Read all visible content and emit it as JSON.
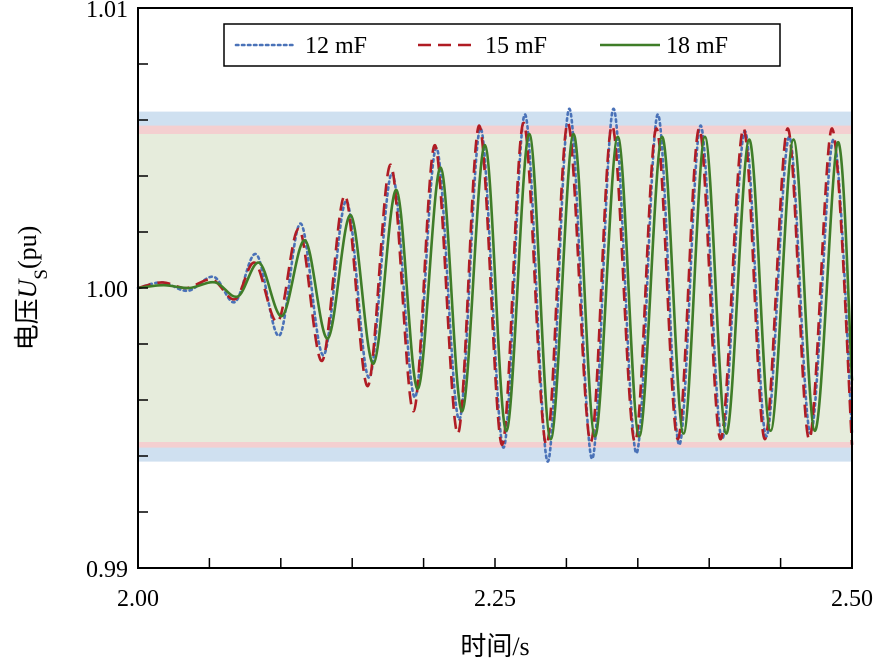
{
  "chart_data": {
    "type": "line",
    "xlabel": "时间/s",
    "ylabel": {
      "prefix": "电压",
      "symbol": "U",
      "subscript": "S",
      "suffix": "(pu)"
    },
    "xlim": [
      2.0,
      2.5
    ],
    "ylim": [
      0.99,
      1.01
    ],
    "x_ticks": [
      2.0,
      2.25,
      2.5
    ],
    "x_tick_labels": [
      "2.00",
      "2.25",
      "2.50"
    ],
    "x_minor_ticks": [
      2.05,
      2.1,
      2.15,
      2.2,
      2.3,
      2.35,
      2.4,
      2.45
    ],
    "y_ticks": [
      0.99,
      1.0,
      1.01
    ],
    "y_tick_labels": [
      "0.99",
      "1.00",
      "1.01"
    ],
    "y_minor_ticks": [
      0.992,
      0.994,
      0.996,
      0.998,
      1.002,
      1.004,
      1.006,
      1.008
    ],
    "grid": false,
    "legend_position": "top",
    "bands": [
      {
        "name": "12 mF",
        "range": [
          0.9938,
          1.0063
        ],
        "color": "#cfe0f0"
      },
      {
        "name": "15 mF",
        "range": [
          0.9943,
          1.0058
        ],
        "color": "#f4cfd0"
      },
      {
        "name": "18 mF",
        "range": [
          0.9945,
          1.0055
        ],
        "color": "#e6ecdc"
      }
    ],
    "series": [
      {
        "name": "12 mF",
        "color": "#4a72b8",
        "style": "dotted",
        "x": [
          2.0,
          2.017,
          2.035,
          2.053,
          2.068,
          2.083,
          2.099,
          2.114,
          2.13,
          2.146,
          2.162,
          2.178,
          2.194,
          2.209,
          2.225,
          2.24,
          2.256,
          2.271,
          2.287,
          2.302,
          2.318,
          2.333,
          2.349,
          2.364,
          2.379,
          2.394,
          2.409,
          2.425,
          2.44,
          2.456,
          2.471,
          2.487,
          2.5
        ],
        "y": [
          1.0,
          1.0002,
          0.9999,
          1.0004,
          0.9995,
          1.0012,
          0.9983,
          1.0023,
          0.9976,
          1.0031,
          0.9968,
          1.0041,
          0.9961,
          1.005,
          0.9953,
          1.0057,
          0.9943,
          1.0062,
          0.9938,
          1.0064,
          0.9939,
          1.0064,
          0.9941,
          1.0062,
          0.9944,
          1.0058,
          0.9946,
          1.0056,
          0.9947,
          1.0054,
          0.9948,
          1.0053,
          0.9948
        ]
      },
      {
        "name": "15 mF",
        "color": "#b01c24",
        "style": "dashed",
        "x": [
          2.0,
          2.017,
          2.034,
          2.052,
          2.068,
          2.082,
          2.098,
          2.113,
          2.129,
          2.145,
          2.161,
          2.177,
          2.193,
          2.208,
          2.224,
          2.239,
          2.255,
          2.27,
          2.286,
          2.301,
          2.317,
          2.332,
          2.348,
          2.363,
          2.378,
          2.393,
          2.408,
          2.424,
          2.439,
          2.455,
          2.47,
          2.486,
          2.5
        ],
        "y": [
          1.0,
          1.0002,
          1.0,
          1.0003,
          0.9996,
          1.0009,
          0.9988,
          1.0021,
          0.9974,
          1.0033,
          0.9965,
          1.0044,
          0.9956,
          1.0051,
          0.9948,
          1.0058,
          0.9944,
          1.0059,
          0.9944,
          1.0059,
          0.9945,
          1.0058,
          0.9945,
          1.0057,
          0.9946,
          1.0057,
          0.9946,
          1.0057,
          0.9946,
          1.0057,
          0.9946,
          1.0057,
          0.9944
        ]
      },
      {
        "name": "18 mF",
        "color": "#3f7d28",
        "style": "solid",
        "x": [
          2.0,
          2.018,
          2.036,
          2.054,
          2.07,
          2.085,
          2.101,
          2.117,
          2.133,
          2.149,
          2.165,
          2.181,
          2.196,
          2.212,
          2.227,
          2.243,
          2.258,
          2.274,
          2.289,
          2.305,
          2.32,
          2.336,
          2.351,
          2.367,
          2.382,
          2.397,
          2.412,
          2.428,
          2.443,
          2.459,
          2.474,
          2.49,
          2.5
        ],
        "y": [
          1.0,
          1.0001,
          1.0,
          1.0002,
          0.9997,
          1.0009,
          0.999,
          1.0017,
          0.9982,
          1.0026,
          0.9973,
          1.0035,
          0.9964,
          1.0043,
          0.9956,
          1.0051,
          0.9949,
          1.0055,
          0.9946,
          1.0055,
          0.9947,
          1.0054,
          0.9947,
          1.0054,
          0.9948,
          1.0054,
          0.9948,
          1.0053,
          0.9949,
          1.0053,
          0.9949,
          1.0052,
          0.9967
        ]
      }
    ]
  }
}
